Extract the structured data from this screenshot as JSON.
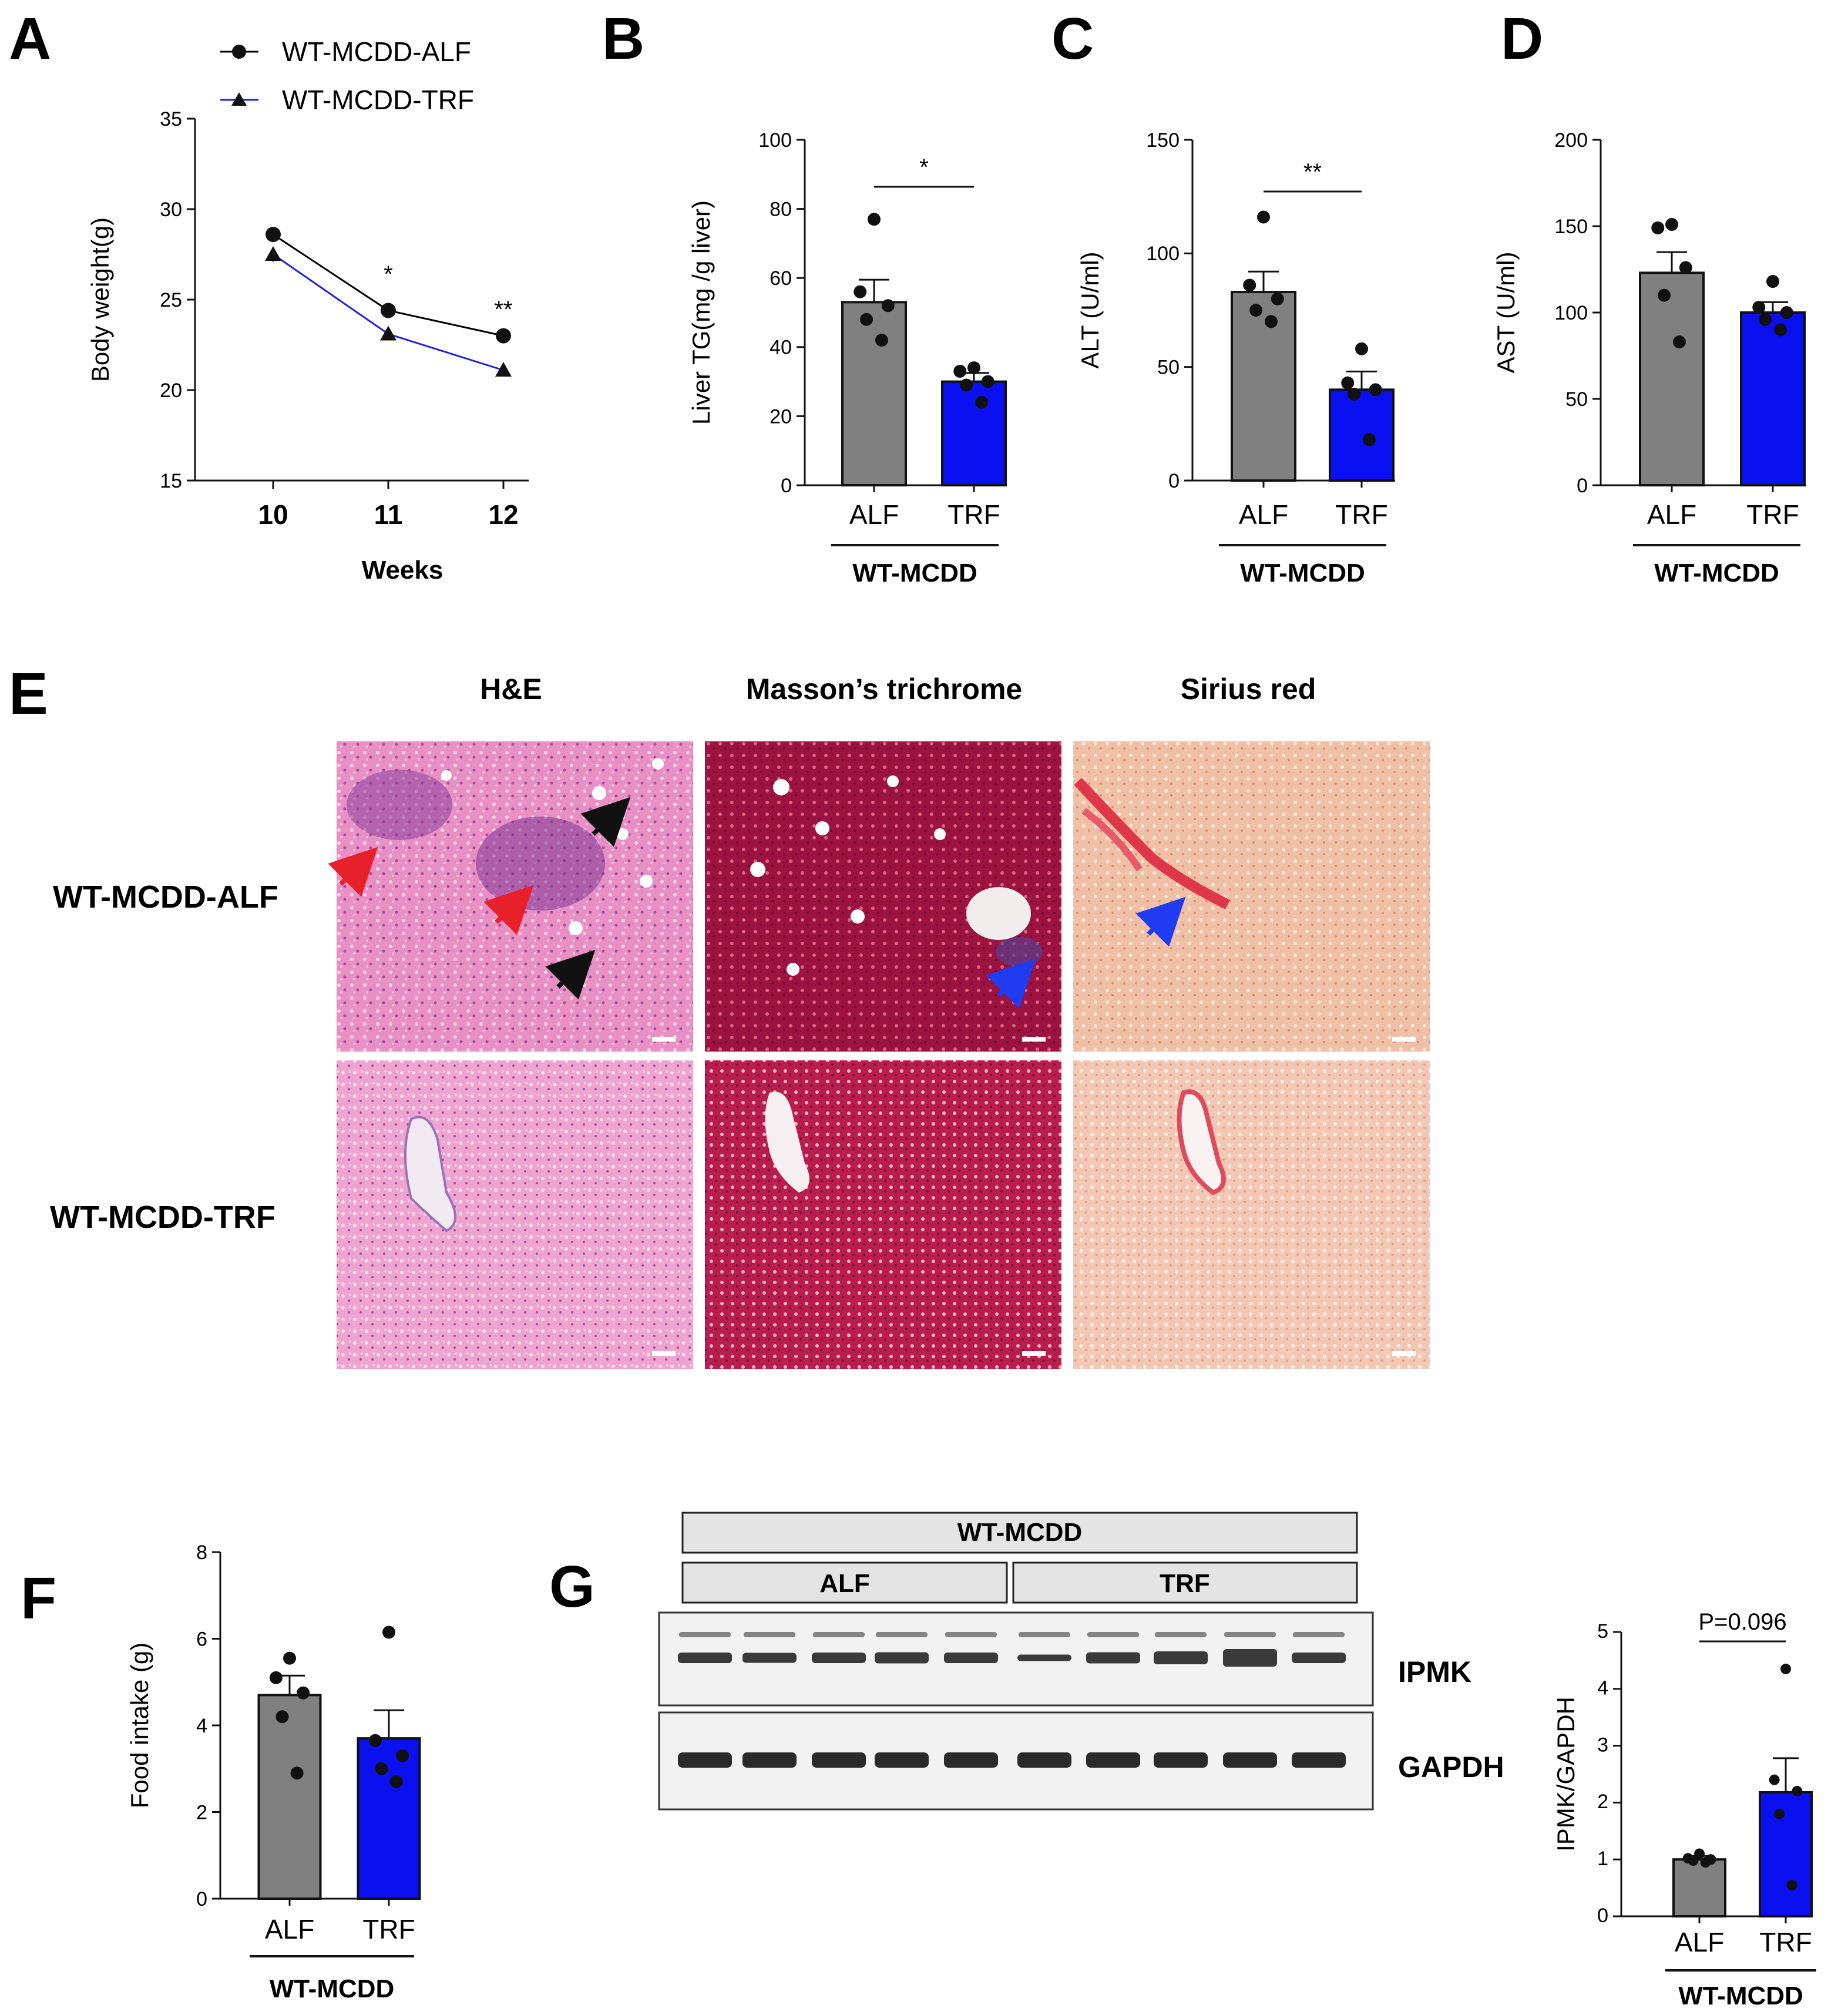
{
  "panel_letters": {
    "A": "A",
    "B": "B",
    "C": "C",
    "D": "D",
    "E": "E",
    "F": "F",
    "G": "G"
  },
  "colors": {
    "alf": "#808080",
    "trf": "#0a10f0",
    "line_alf": "#000000",
    "line_trf": "#2020e0"
  },
  "chart_data": [
    {
      "id": "A",
      "type": "line",
      "xlabel": "Weeks",
      "ylabel": "Body weight(g)",
      "ylim": [
        15,
        35
      ],
      "yticks": [
        15,
        20,
        25,
        30,
        35
      ],
      "x": [
        10,
        11,
        12
      ],
      "series": [
        {
          "name": "WT-MCDD-ALF",
          "values": [
            28.6,
            24.4,
            23.0
          ],
          "err": [
            0.4,
            0.3,
            0.3
          ],
          "marker": "circle"
        },
        {
          "name": "WT-MCDD-TRF",
          "values": [
            27.5,
            23.1,
            21.1
          ],
          "err": [
            0.4,
            0.3,
            0.3
          ],
          "marker": "triangle"
        }
      ],
      "annotations": [
        {
          "x": 11,
          "text": "*"
        },
        {
          "x": 12,
          "text": "**"
        }
      ],
      "legend_position": "top"
    },
    {
      "id": "B",
      "type": "bar",
      "group": "WT-MCDD",
      "ylabel": "Liver TG(mg /g liver)",
      "ylim": [
        0,
        100
      ],
      "yticks": [
        0,
        20,
        40,
        60,
        80,
        100
      ],
      "categories": [
        "ALF",
        "TRF"
      ],
      "values": [
        53,
        30
      ],
      "sem": [
        6.5,
        2.5
      ],
      "points": [
        [
          77,
          56,
          52,
          48,
          42
        ],
        [
          34,
          33,
          30,
          29,
          24
        ]
      ],
      "significance": "*"
    },
    {
      "id": "C",
      "type": "bar",
      "group": "WT-MCDD",
      "ylabel": "ALT (U/ml)",
      "ylim": [
        0,
        150
      ],
      "yticks": [
        0,
        50,
        100,
        150
      ],
      "categories": [
        "ALF",
        "TRF"
      ],
      "values": [
        83,
        40
      ],
      "sem": [
        9,
        8
      ],
      "points": [
        [
          116,
          86,
          80,
          75,
          70
        ],
        [
          58,
          43,
          40,
          38,
          18
        ]
      ],
      "significance": "**"
    },
    {
      "id": "D",
      "type": "bar",
      "group": "WT-MCDD",
      "ylabel": "AST (U/ml)",
      "ylim": [
        0,
        200
      ],
      "yticks": [
        0,
        50,
        100,
        150,
        200
      ],
      "categories": [
        "ALF",
        "TRF"
      ],
      "values": [
        123,
        100
      ],
      "sem": [
        12,
        6
      ],
      "points": [
        [
          151,
          149,
          126,
          110,
          83
        ],
        [
          118,
          103,
          100,
          96,
          90
        ]
      ],
      "significance": ""
    },
    {
      "id": "F",
      "type": "bar",
      "group": "WT-MCDD",
      "ylabel": "Food intake (g)",
      "ylim": [
        0,
        8
      ],
      "yticks": [
        0,
        2,
        4,
        6,
        8
      ],
      "categories": [
        "ALF",
        "TRF"
      ],
      "values": [
        4.7,
        3.7
      ],
      "sem": [
        0.45,
        0.65
      ],
      "points": [
        [
          5.55,
          5.1,
          4.75,
          4.2,
          2.9
        ],
        [
          6.15,
          3.65,
          3.3,
          3.0,
          2.7
        ]
      ],
      "significance": ""
    },
    {
      "id": "G",
      "type": "bar",
      "group": "WT-MCDD",
      "ylabel": "IPMK/GAPDH",
      "ylim": [
        0,
        5
      ],
      "yticks": [
        0,
        1,
        2,
        3,
        4,
        5
      ],
      "categories": [
        "ALF",
        "TRF"
      ],
      "values": [
        1.0,
        2.18
      ],
      "sem": [
        0.06,
        0.6
      ],
      "points": [
        [
          1.1,
          1.02,
          1.0,
          0.98,
          0.95
        ],
        [
          4.35,
          2.4,
          2.2,
          1.8,
          0.55
        ]
      ],
      "significance": "P=0.096"
    }
  ],
  "histology": {
    "stains": [
      "H&E",
      "Masson’s trichrome",
      "Sirius red"
    ],
    "rows": [
      "WT-MCDD-ALF",
      "WT-MCDD-TRF"
    ]
  },
  "blot": {
    "group": "WT-MCDD",
    "subgroups": [
      "ALF",
      "TRF"
    ],
    "bands": [
      "IPMK",
      "GAPDH"
    ]
  }
}
